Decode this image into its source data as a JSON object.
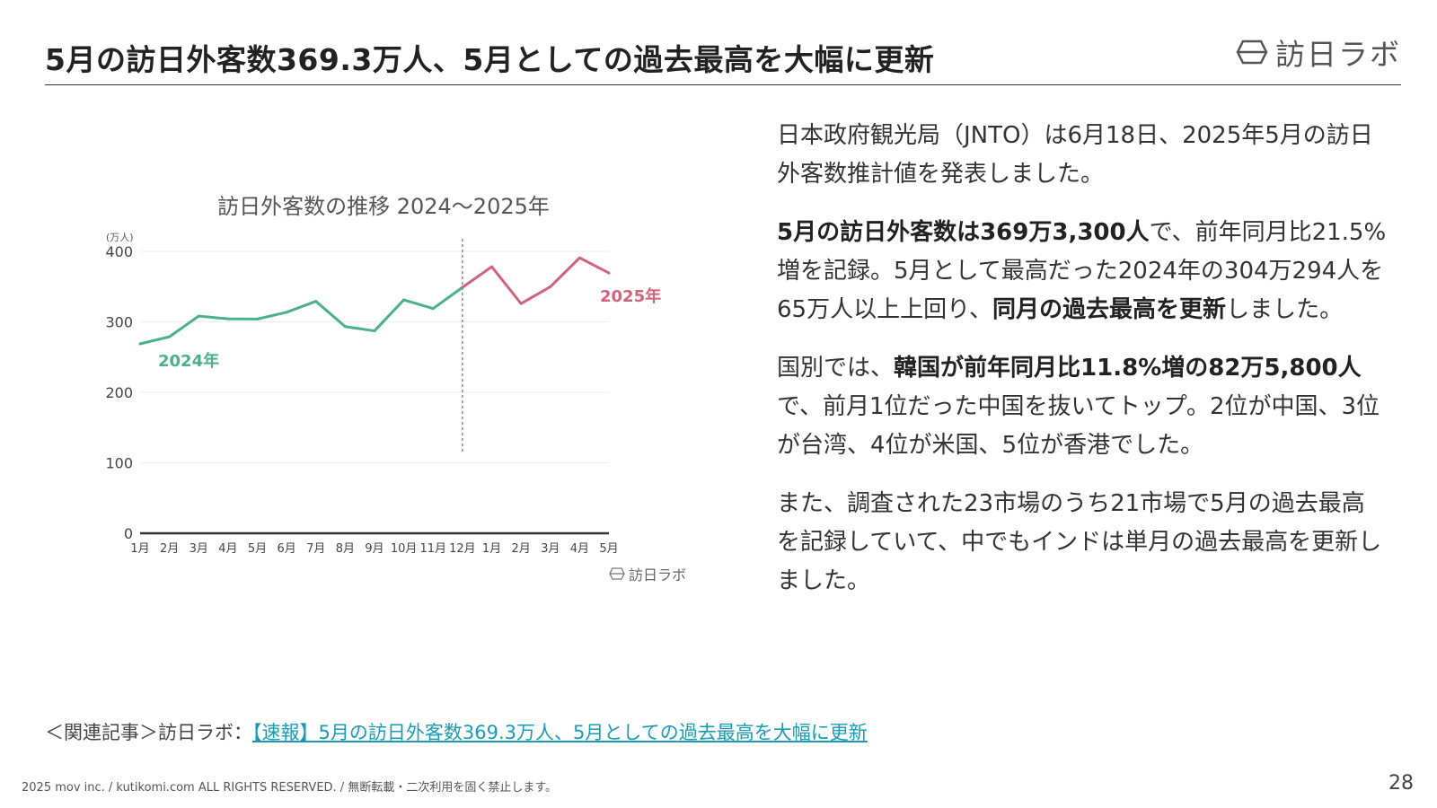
{
  "page": {
    "title": "5月の訪日外客数369.3万人、5月としての過去最高を大幅に更新",
    "brand_name": "訪日ラボ",
    "page_number": "28",
    "copyright": "2025 mov inc. / kutikomi.com ALL RIGHTS RESERVED. / 無断転載・二次利用を固く禁止します。"
  },
  "body": {
    "p1": "日本政府観光局（JNTO）は6月18日、2025年5月の訪日外客数推計値を発表しました。",
    "p2_bold1": "5月の訪日外客数は369万3,300人",
    "p2_text1": "で、前年同月比21.5%増を記録。5月として最高だった2024年の304万294人を65万人以上上回り、",
    "p2_bold2": "同月の過去最高を更新",
    "p2_text2": "しました。",
    "p3_text1": "国別では、",
    "p3_bold1": "韓国が前年同月比11.8%増の82万5,800人",
    "p3_text2": "で、前月1位だった中国を抜いてトップ。2位が中国、3位が台湾、4位が米国、5位が香港でした。",
    "p4": "また、調査された23市場のうち21市場で5月の過去最高を記録していて、中でもインドは単月の過去最高を更新しました。"
  },
  "related": {
    "prefix": "＜関連記事＞訪日ラボ：",
    "link_text": "【速報】5月の訪日外客数369.3万人、5月としての過去最高を大幅に更新"
  },
  "chart_data": {
    "type": "line",
    "title": "訪日外客数の推移 2024〜2025年",
    "unit_label": "(万人)",
    "categories": [
      "1月",
      "2月",
      "3月",
      "4月",
      "5月",
      "6月",
      "7月",
      "8月",
      "9月",
      "10月",
      "11月",
      "12月",
      "1月",
      "2月",
      "3月",
      "4月",
      "5月"
    ],
    "series": [
      {
        "name": "2024年",
        "color": "#4caf8e",
        "values": [
          268.8,
          278.8,
          308.2,
          304.3,
          304.0,
          313.6,
          329.2,
          293.3,
          287.2,
          331.2,
          318.9,
          348.9,
          null,
          null,
          null,
          null,
          null
        ]
      },
      {
        "name": "2025年",
        "color": "#d0637e",
        "values": [
          null,
          null,
          null,
          null,
          null,
          null,
          null,
          null,
          null,
          null,
          null,
          348.9,
          378.2,
          325.9,
          349.8,
          390.8,
          369.3
        ]
      }
    ],
    "y_ticks": [
      0,
      100,
      200,
      300,
      400
    ],
    "ylim": [
      0,
      400
    ],
    "grid": true,
    "divider_after_category_index": 11,
    "watermark": "訪日ラボ"
  }
}
